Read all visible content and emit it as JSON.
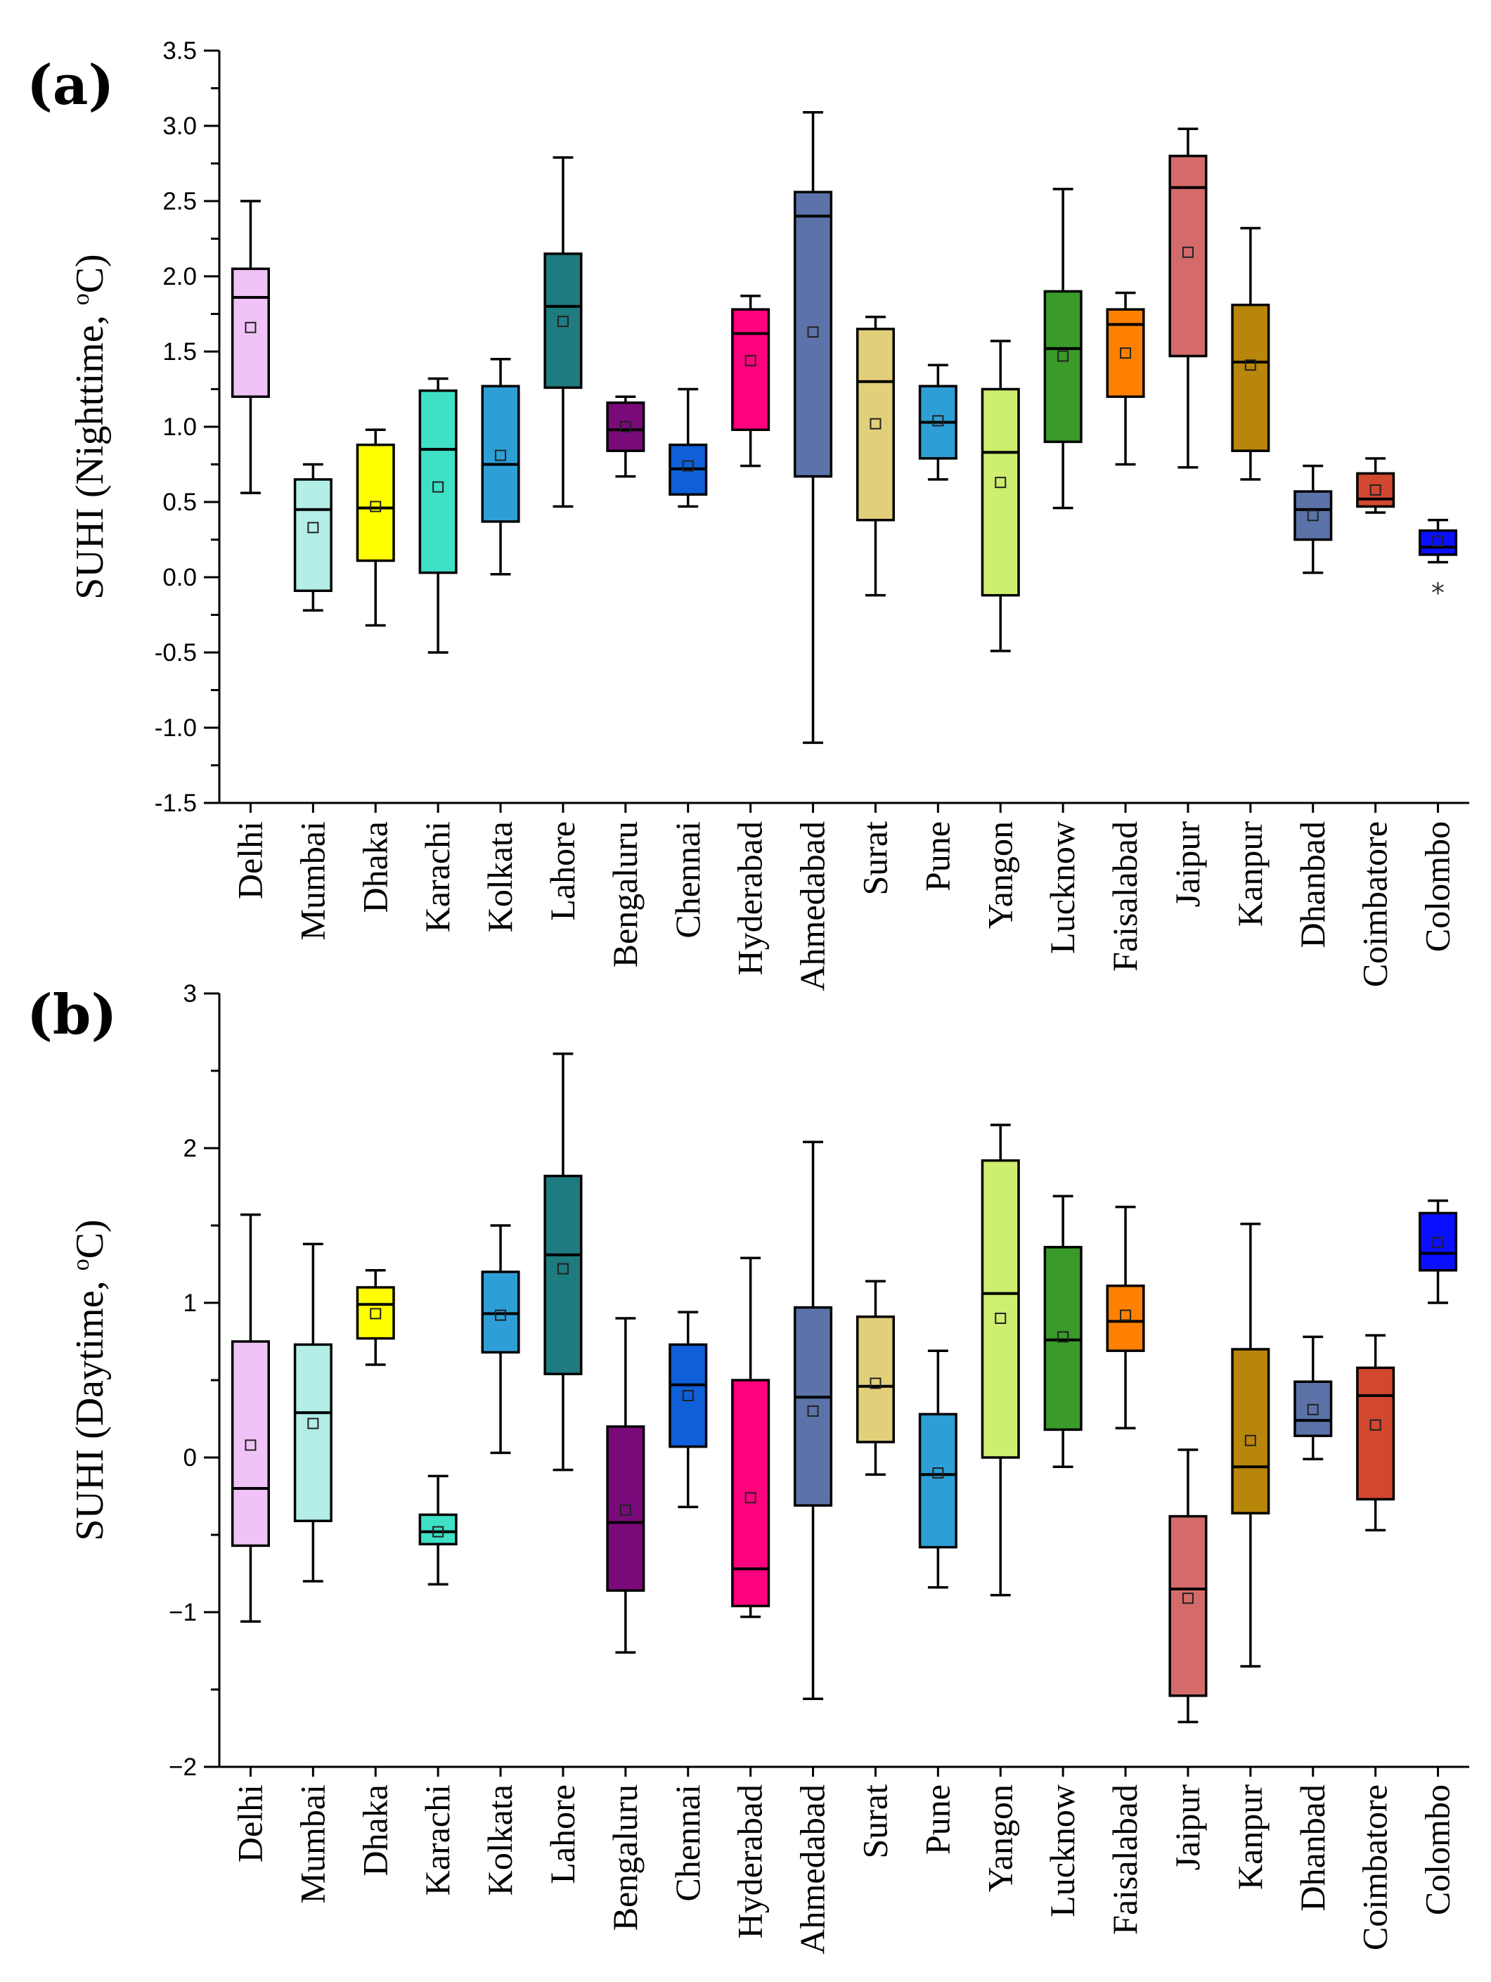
{
  "chart_data": [
    {
      "type": "boxplot",
      "panel_label": "(a)",
      "ylabel_main": "SUHI (Nighttime, ",
      "ylabel_sup": "o",
      "ylabel_end": "C)",
      "ylim": [
        -1.5,
        3.5
      ],
      "yticks": [
        -1.5,
        -1.0,
        -0.5,
        0.0,
        0.5,
        1.0,
        1.5,
        2.0,
        2.5,
        3.0,
        3.5
      ],
      "ytick_labels": [
        "-1.5",
        "-1.0",
        "-0.5",
        "0.0",
        "0.5",
        "1.0",
        "1.5",
        "2.0",
        "2.5",
        "3.0",
        "3.5"
      ],
      "categories": [
        "Delhi",
        "Mumbai",
        "Dhaka",
        "Karachi",
        "Kolkata",
        "Lahore",
        "Bengaluru",
        "Chennai",
        "Hyderabad",
        "Ahmedabad",
        "Surat",
        "Pune",
        "Yangon",
        "Lucknow",
        "Faisalabad",
        "Jaipur",
        "Kanpur",
        "Dhanbad",
        "Coimbatore",
        "Colombo"
      ],
      "colors": [
        "#f0c2f7",
        "#b3efe6",
        "#ffff00",
        "#3fe0c6",
        "#2e9fd6",
        "#1e7b7f",
        "#7a0a7a",
        "#0f5fd8",
        "#ff007f",
        "#5b73a8",
        "#e2cf7a",
        "#2e9fd6",
        "#cdee6e",
        "#3a9a2a",
        "#ff8000",
        "#d46a6a",
        "#b8860b",
        "#5b73a8",
        "#d2472f",
        "#0a10ff"
      ],
      "stats": [
        {
          "min": 0.56,
          "q1": 1.2,
          "median": 1.86,
          "q3": 2.05,
          "max": 2.5,
          "mean": 1.66
        },
        {
          "min": -0.22,
          "q1": -0.09,
          "median": 0.45,
          "q3": 0.65,
          "max": 0.75,
          "mean": 0.33
        },
        {
          "min": -0.32,
          "q1": 0.11,
          "median": 0.46,
          "q3": 0.88,
          "max": 0.98,
          "mean": 0.47
        },
        {
          "min": -0.5,
          "q1": 0.03,
          "median": 0.85,
          "q3": 1.24,
          "max": 1.32,
          "mean": 0.6
        },
        {
          "min": 0.02,
          "q1": 0.37,
          "median": 0.75,
          "q3": 1.27,
          "max": 1.45,
          "mean": 0.81
        },
        {
          "min": 0.47,
          "q1": 1.26,
          "median": 1.8,
          "q3": 2.15,
          "max": 2.79,
          "mean": 1.7
        },
        {
          "min": 0.67,
          "q1": 0.84,
          "median": 0.98,
          "q3": 1.16,
          "max": 1.2,
          "mean": 1.0
        },
        {
          "min": 0.47,
          "q1": 0.55,
          "median": 0.72,
          "q3": 0.88,
          "max": 1.25,
          "mean": 0.74
        },
        {
          "min": 0.74,
          "q1": 0.98,
          "median": 1.62,
          "q3": 1.78,
          "max": 1.87,
          "mean": 1.44
        },
        {
          "min": -1.1,
          "q1": 0.67,
          "median": 2.4,
          "q3": 2.56,
          "max": 3.09,
          "mean": 1.63
        },
        {
          "min": -0.12,
          "q1": 0.38,
          "median": 1.3,
          "q3": 1.65,
          "max": 1.73,
          "mean": 1.02
        },
        {
          "min": 0.65,
          "q1": 0.79,
          "median": 1.03,
          "q3": 1.27,
          "max": 1.41,
          "mean": 1.04
        },
        {
          "min": -0.49,
          "q1": -0.12,
          "median": 0.83,
          "q3": 1.25,
          "max": 1.57,
          "mean": 0.63
        },
        {
          "min": 0.46,
          "q1": 0.9,
          "median": 1.52,
          "q3": 1.9,
          "max": 2.58,
          "mean": 1.47
        },
        {
          "min": 0.75,
          "q1": 1.2,
          "median": 1.68,
          "q3": 1.78,
          "max": 1.89,
          "mean": 1.49
        },
        {
          "min": 0.73,
          "q1": 1.47,
          "median": 2.59,
          "q3": 2.8,
          "max": 2.98,
          "mean": 2.16
        },
        {
          "min": 0.65,
          "q1": 0.84,
          "median": 1.43,
          "q3": 1.81,
          "max": 2.32,
          "mean": 1.41
        },
        {
          "min": 0.03,
          "q1": 0.25,
          "median": 0.45,
          "q3": 0.57,
          "max": 0.74,
          "mean": 0.41
        },
        {
          "min": 0.43,
          "q1": 0.47,
          "median": 0.52,
          "q3": 0.69,
          "max": 0.79,
          "mean": 0.58
        },
        {
          "min": 0.1,
          "q1": 0.15,
          "median": 0.2,
          "q3": 0.31,
          "max": 0.38,
          "mean": 0.24,
          "outliers": [
            -0.1
          ]
        }
      ]
    },
    {
      "type": "boxplot",
      "panel_label": "(b)",
      "ylabel_main": "SUHI (Daytime, ",
      "ylabel_sup": "o",
      "ylabel_end": "C)",
      "ylim": [
        -2,
        3
      ],
      "yticks": [
        -2,
        -1,
        0,
        1,
        2,
        3
      ],
      "ytick_labels": [
        "−2",
        "−1",
        "0",
        "1",
        "2",
        "3"
      ],
      "categories": [
        "Delhi",
        "Mumbai",
        "Dhaka",
        "Karachi",
        "Kolkata",
        "Lahore",
        "Bengaluru",
        "Chennai",
        "Hyderabad",
        "Ahmedabad",
        "Surat",
        "Pune",
        "Yangon",
        "Lucknow",
        "Faisalabad",
        "Jaipur",
        "Kanpur",
        "Dhanbad",
        "Coimbatore",
        "Colombo"
      ],
      "colors": [
        "#f0c2f7",
        "#b3efe6",
        "#ffff00",
        "#3fe0c6",
        "#2e9fd6",
        "#1e7b7f",
        "#7a0a7a",
        "#0f5fd8",
        "#ff007f",
        "#5b73a8",
        "#e2cf7a",
        "#2e9fd6",
        "#cdee6e",
        "#3a9a2a",
        "#ff8000",
        "#d46a6a",
        "#b8860b",
        "#5b73a8",
        "#d2472f",
        "#0a10ff"
      ],
      "stats": [
        {
          "min": -1.06,
          "q1": -0.57,
          "median": -0.2,
          "q3": 0.75,
          "max": 1.57,
          "mean": 0.08
        },
        {
          "min": -0.8,
          "q1": -0.41,
          "median": 0.29,
          "q3": 0.73,
          "max": 1.38,
          "mean": 0.22
        },
        {
          "min": 0.6,
          "q1": 0.77,
          "median": 0.99,
          "q3": 1.1,
          "max": 1.21,
          "mean": 0.93
        },
        {
          "min": -0.82,
          "q1": -0.56,
          "median": -0.48,
          "q3": -0.37,
          "max": -0.12,
          "mean": -0.48
        },
        {
          "min": 0.03,
          "q1": 0.68,
          "median": 0.93,
          "q3": 1.2,
          "max": 1.5,
          "mean": 0.92
        },
        {
          "min": -0.08,
          "q1": 0.54,
          "median": 1.31,
          "q3": 1.82,
          "max": 2.61,
          "mean": 1.22
        },
        {
          "min": -1.26,
          "q1": -0.86,
          "median": -0.42,
          "q3": 0.2,
          "max": 0.9,
          "mean": -0.34
        },
        {
          "min": -0.32,
          "q1": 0.07,
          "median": 0.47,
          "q3": 0.73,
          "max": 0.94,
          "mean": 0.4
        },
        {
          "min": -1.03,
          "q1": -0.96,
          "median": -0.72,
          "q3": 0.5,
          "max": 1.29,
          "mean": -0.26
        },
        {
          "min": -1.56,
          "q1": -0.31,
          "median": 0.39,
          "q3": 0.97,
          "max": 2.04,
          "mean": 0.3
        },
        {
          "min": -0.11,
          "q1": 0.1,
          "median": 0.46,
          "q3": 0.91,
          "max": 1.14,
          "mean": 0.48
        },
        {
          "min": -0.84,
          "q1": -0.58,
          "median": -0.11,
          "q3": 0.28,
          "max": 0.69,
          "mean": -0.1
        },
        {
          "min": -0.89,
          "q1": 0.0,
          "median": 1.06,
          "q3": 1.92,
          "max": 2.15,
          "mean": 0.9
        },
        {
          "min": -0.06,
          "q1": 0.18,
          "median": 0.76,
          "q3": 1.36,
          "max": 1.69,
          "mean": 0.78
        },
        {
          "min": 0.19,
          "q1": 0.69,
          "median": 0.88,
          "q3": 1.11,
          "max": 1.62,
          "mean": 0.92
        },
        {
          "min": -1.71,
          "q1": -1.54,
          "median": -0.85,
          "q3": -0.38,
          "max": 0.05,
          "mean": -0.91
        },
        {
          "min": -1.35,
          "q1": -0.36,
          "median": -0.06,
          "q3": 0.7,
          "max": 1.51,
          "mean": 0.11
        },
        {
          "min": -0.01,
          "q1": 0.14,
          "median": 0.24,
          "q3": 0.49,
          "max": 0.78,
          "mean": 0.31
        },
        {
          "min": -0.47,
          "q1": -0.27,
          "median": 0.4,
          "q3": 0.58,
          "max": 0.79,
          "mean": 0.21
        },
        {
          "min": 1.0,
          "q1": 1.21,
          "median": 1.32,
          "q3": 1.58,
          "max": 1.66,
          "mean": 1.39
        }
      ]
    }
  ]
}
